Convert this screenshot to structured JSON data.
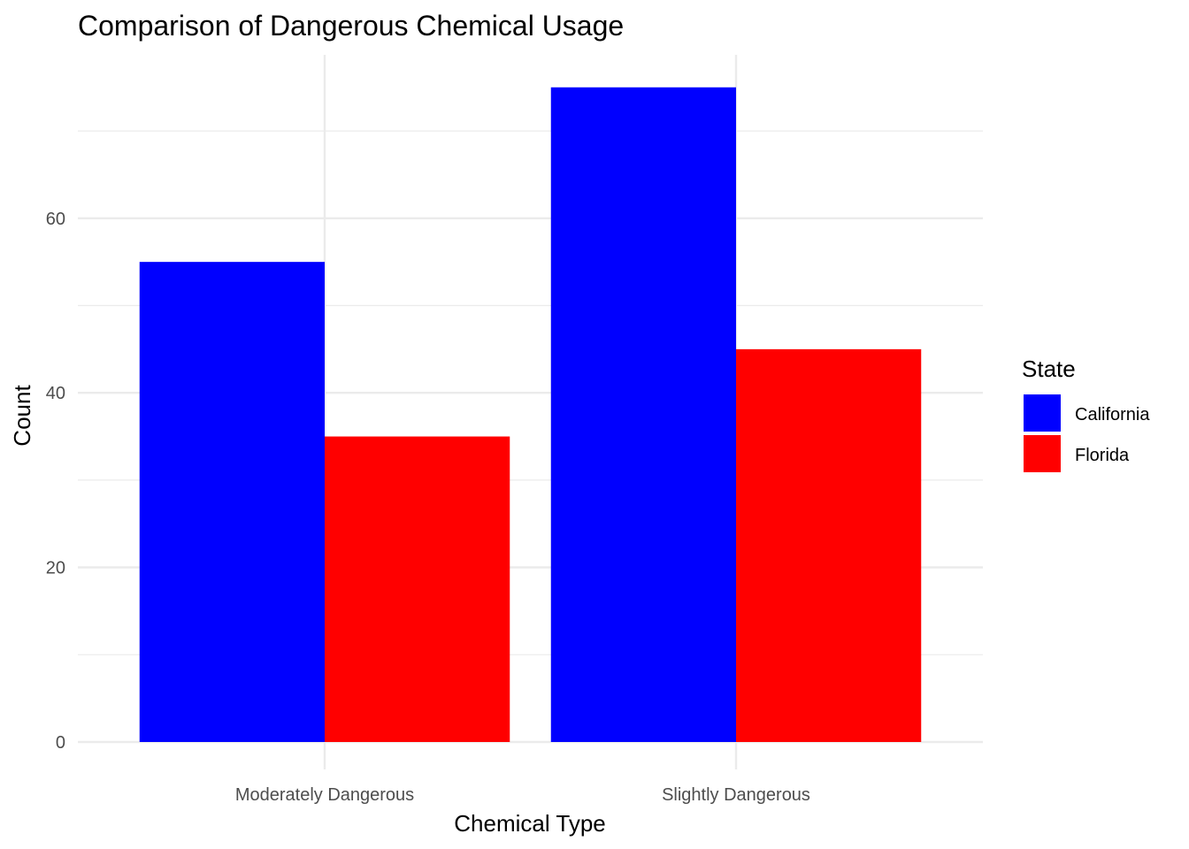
{
  "chart_data": {
    "type": "bar",
    "title": "Comparison of Dangerous Chemical Usage",
    "xlabel": "Chemical Type",
    "ylabel": "Count",
    "categories": [
      "Moderately Dangerous",
      "Slightly Dangerous"
    ],
    "series": [
      {
        "name": "California",
        "values": [
          55,
          75
        ],
        "color": "#0000ff"
      },
      {
        "name": "Florida",
        "values": [
          35,
          45
        ],
        "color": "#ff0000"
      }
    ],
    "ylim": [
      0,
      78.75
    ],
    "yticks": [
      0,
      20,
      40,
      60
    ],
    "ytick_labels": [
      "0",
      "20",
      "40",
      "60"
    ],
    "grid": true,
    "legend": {
      "title": "State",
      "position": "right"
    }
  }
}
